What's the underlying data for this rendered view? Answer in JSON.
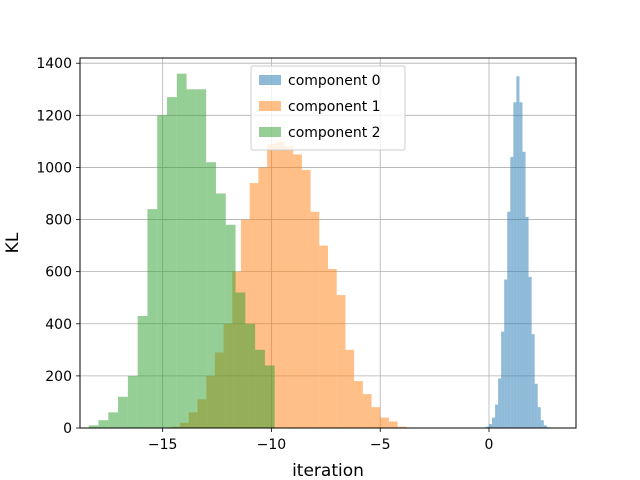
{
  "chart_data": {
    "type": "bar",
    "subtype": "histogram",
    "title": "",
    "xlabel": "iteration",
    "ylabel": "KL",
    "xlim": [
      -18.8,
      4.0
    ],
    "ylim": [
      0,
      1420
    ],
    "xticks": [
      -15,
      -10,
      -5,
      0
    ],
    "xtick_labels": [
      "−15",
      "−10",
      "−5",
      "0"
    ],
    "yticks": [
      0,
      200,
      400,
      600,
      800,
      1000,
      1200,
      1400
    ],
    "ytick_labels": [
      "0",
      "200",
      "400",
      "600",
      "800",
      "1000",
      "1200",
      "1400"
    ],
    "grid": true,
    "legend_position": "top-center",
    "bar_alpha": 0.5,
    "series": [
      {
        "name": "component 0",
        "color": "#1f77b4",
        "bin_edges": [
          -0.15,
          0.0,
          0.14,
          0.28,
          0.42,
          0.56,
          0.7,
          0.84,
          0.98,
          1.12,
          1.26,
          1.4,
          1.54,
          1.68,
          1.82,
          1.96,
          2.1,
          2.24,
          2.38,
          2.52,
          2.66,
          2.8
        ],
        "counts": [
          5,
          15,
          40,
          90,
          190,
          370,
          570,
          830,
          1040,
          1250,
          1350,
          1250,
          1060,
          810,
          580,
          360,
          170,
          80,
          30,
          10,
          3
        ]
      },
      {
        "name": "component 1",
        "color": "#ff7f0e",
        "bin_edges": [
          -14.6,
          -14.2,
          -13.8,
          -13.4,
          -13.0,
          -12.6,
          -12.2,
          -11.8,
          -11.4,
          -11.0,
          -10.6,
          -10.2,
          -9.8,
          -9.4,
          -9.0,
          -8.6,
          -8.2,
          -7.8,
          -7.4,
          -7.0,
          -6.6,
          -6.2,
          -5.8,
          -5.4,
          -5.0,
          -4.6,
          -4.2,
          -3.8
        ],
        "counts": [
          5,
          20,
          60,
          110,
          200,
          290,
          400,
          600,
          800,
          940,
          1000,
          1090,
          1100,
          1080,
          1050,
          990,
          830,
          700,
          610,
          510,
          300,
          180,
          130,
          80,
          40,
          25,
          5
        ]
      },
      {
        "name": "component 2",
        "color": "#2ca02c",
        "bin_edges": [
          -18.4,
          -17.95,
          -17.5,
          -17.05,
          -16.6,
          -16.15,
          -15.7,
          -15.25,
          -14.8,
          -14.35,
          -13.9,
          -13.45,
          -13.0,
          -12.55,
          -12.1,
          -11.65,
          -11.2,
          -10.75,
          -10.3,
          -9.85
        ],
        "counts": [
          10,
          30,
          60,
          120,
          200,
          430,
          840,
          1200,
          1270,
          1360,
          1300,
          1300,
          1020,
          900,
          780,
          520,
          400,
          300,
          240
        ]
      }
    ]
  }
}
